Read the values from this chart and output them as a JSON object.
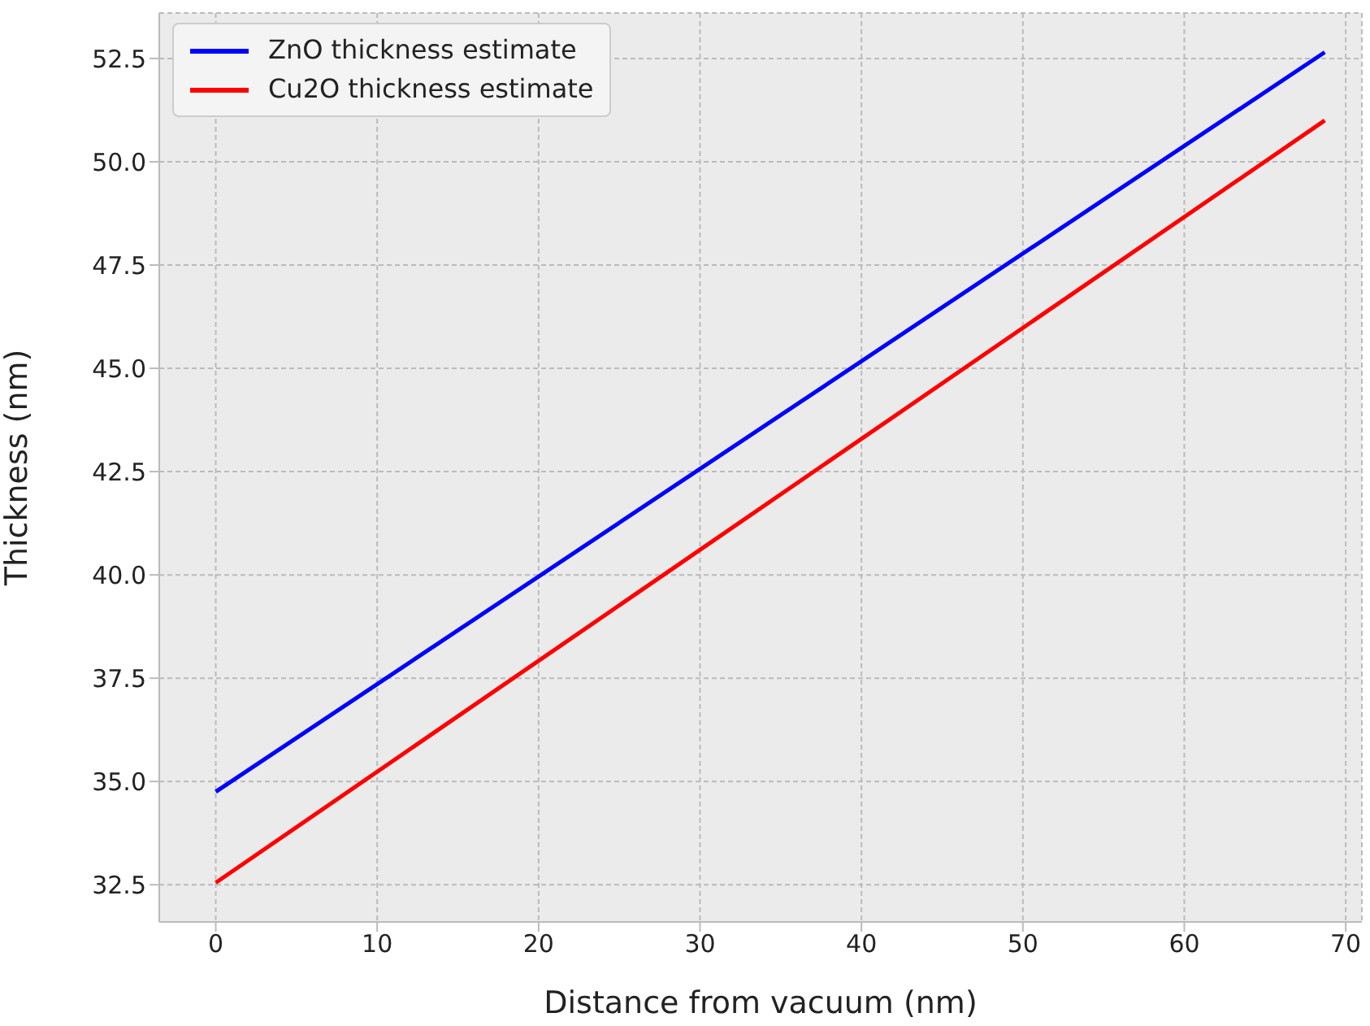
{
  "chart_data": {
    "type": "line",
    "xlabel": "Distance from vacuum (nm)",
    "ylabel": "Thickness (nm)",
    "x": [
      0,
      68.7
    ],
    "series": [
      {
        "name": "ZnO thickness estimate",
        "color": "#0000ff",
        "values": [
          34.75,
          52.65
        ]
      },
      {
        "name": "Cu2O thickness estimate",
        "color": "#ff0000",
        "values": [
          32.55,
          51.0
        ]
      }
    ],
    "xlim": [
      -3.5,
      71
    ],
    "xticks": [
      0,
      10,
      20,
      30,
      40,
      50,
      60,
      70
    ],
    "ylim": [
      31.6,
      53.6
    ],
    "yticks": [
      {
        "value": 32.5,
        "label": "32.5"
      },
      {
        "value": 35,
        "label": "35.0"
      },
      {
        "value": 37.5,
        "label": "37.5"
      },
      {
        "value": 40,
        "label": "40.0"
      },
      {
        "value": 42.5,
        "label": "42.5"
      },
      {
        "value": 45,
        "label": "45.0"
      },
      {
        "value": 47.5,
        "label": "47.5"
      },
      {
        "value": 50,
        "label": "50.0"
      },
      {
        "value": 52.5,
        "label": "52.5"
      }
    ],
    "grid": true,
    "legend": "top left",
    "marker": "none",
    "line_style": "solid"
  }
}
